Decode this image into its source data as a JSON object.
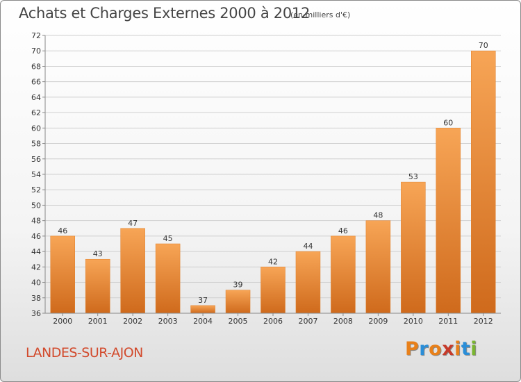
{
  "header": {
    "title": "Achats et Charges Externes 2000 à 2012",
    "subtitle": "(en milliers d'€)"
  },
  "footer": {
    "town": "LANDES-SUR-AJON",
    "logo": "Proxiti",
    "logo_colors": [
      "#e8801a",
      "#2a8ed8",
      "#e8801a",
      "#c63a2a",
      "#e8801a",
      "#2a8ed8",
      "#7ab530"
    ]
  },
  "chart_data": {
    "type": "bar",
    "title": "Achats et Charges Externes 2000 à 2012",
    "subtitle": "(en milliers d'€)",
    "categories": [
      "2000",
      "2001",
      "2002",
      "2003",
      "2004",
      "2005",
      "2006",
      "2007",
      "2008",
      "2009",
      "2010",
      "2011",
      "2012"
    ],
    "values": [
      46,
      43,
      47,
      45,
      37,
      39,
      42,
      44,
      46,
      48,
      53,
      60,
      70
    ],
    "ylim": [
      36,
      72
    ],
    "yticks": [
      36,
      38,
      40,
      42,
      44,
      46,
      48,
      50,
      52,
      54,
      56,
      58,
      60,
      62,
      64,
      66,
      68,
      70,
      72
    ],
    "grid": true,
    "bar_color": "#f0913a",
    "bar_color_dark": "#cf6a1c"
  }
}
